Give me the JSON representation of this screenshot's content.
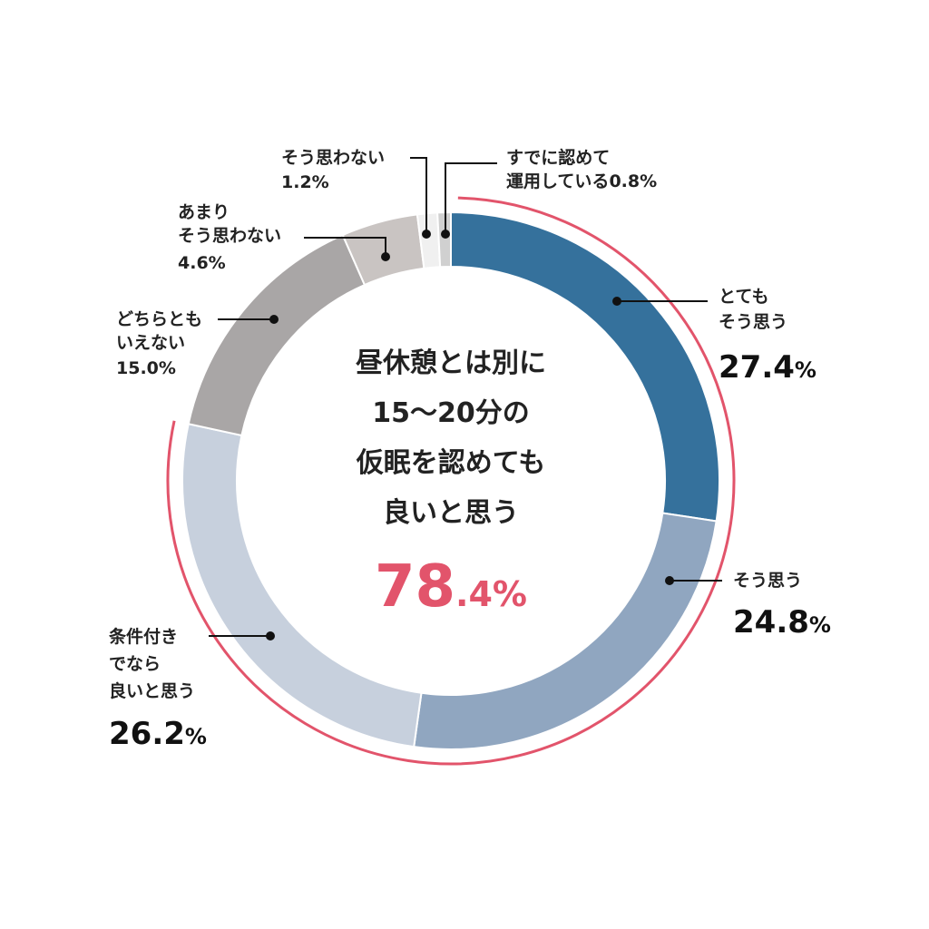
{
  "chart_data": {
    "type": "pie",
    "variant": "donut",
    "start_angle_deg": 0,
    "direction": "clockwise",
    "slices": [
      {
        "label": "とても\nそう思う",
        "value": 27.4,
        "value_text": "27.4",
        "color": "#35719c"
      },
      {
        "label": "そう思う",
        "value": 24.8,
        "value_text": "24.8",
        "color": "#90a6c0"
      },
      {
        "label": "条件付き\nでなら\n良いと思う",
        "value": 26.2,
        "value_text": "26.2",
        "color": "#c7d0dd"
      },
      {
        "label": "どちらとも\nいえない",
        "value": 15.0,
        "value_text": "15.0",
        "color": "#a9a6a6"
      },
      {
        "label": "あまり\nそう思わない",
        "value": 4.6,
        "value_text": "4.6",
        "color": "#c9c4c2"
      },
      {
        "label": "そう思わない",
        "value": 1.2,
        "value_text": "1.2",
        "color": "#f0f0f0"
      },
      {
        "label": "すでに認めて\n運用している",
        "value": 0.8,
        "value_text": "0.8",
        "color": "#d0d0d0"
      }
    ],
    "percent_sign": "%",
    "highlight": {
      "text": "昼休憩とは別に\n15～20分の\n仮眠を認めても\n良いと思う",
      "value_int": "78",
      "value_dec": ".4",
      "percent_sign": "%",
      "color": "#e2546b",
      "covers_slices": [
        0,
        1,
        2
      ]
    }
  }
}
